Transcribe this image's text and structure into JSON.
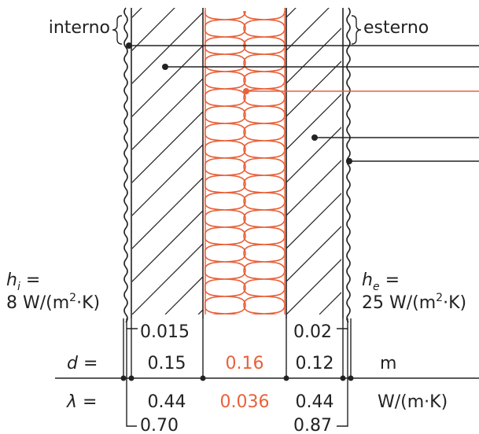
{
  "labels": {
    "interior": "interno",
    "exterior": "esterno"
  },
  "coefficients": {
    "hi_symbol": "h",
    "hi_sub": "i",
    "hi_eq": " =",
    "hi_value_prefix": "8 W/(m",
    "hi_value_exp": "2",
    "hi_value_suffix": "·K)",
    "he_symbol": "h",
    "he_sub": "e",
    "he_eq": " =",
    "he_value_prefix": "25 W/(m",
    "he_value_exp": "2",
    "he_value_suffix": "·K)"
  },
  "table": {
    "d_symbol": "d",
    "d_eq": " =",
    "lambda_symbol": "λ",
    "lambda_eq": " =",
    "d_unit": "m",
    "lambda_unit": "W/(m·K)",
    "plaster_int_d": "0.015",
    "plaster_int_lambda": "0.70",
    "plaster_ext_d": "0.02",
    "plaster_ext_lambda": "0.87",
    "masonry_int_d": "0.15",
    "masonry_int_lambda": "0.44",
    "insulation_d": "0.16",
    "insulation_lambda": "0.036",
    "masonry_ext_d": "0.12",
    "masonry_ext_lambda": "0.44"
  },
  "colors": {
    "insulation": "#e8623a",
    "ink": "#222222"
  }
}
